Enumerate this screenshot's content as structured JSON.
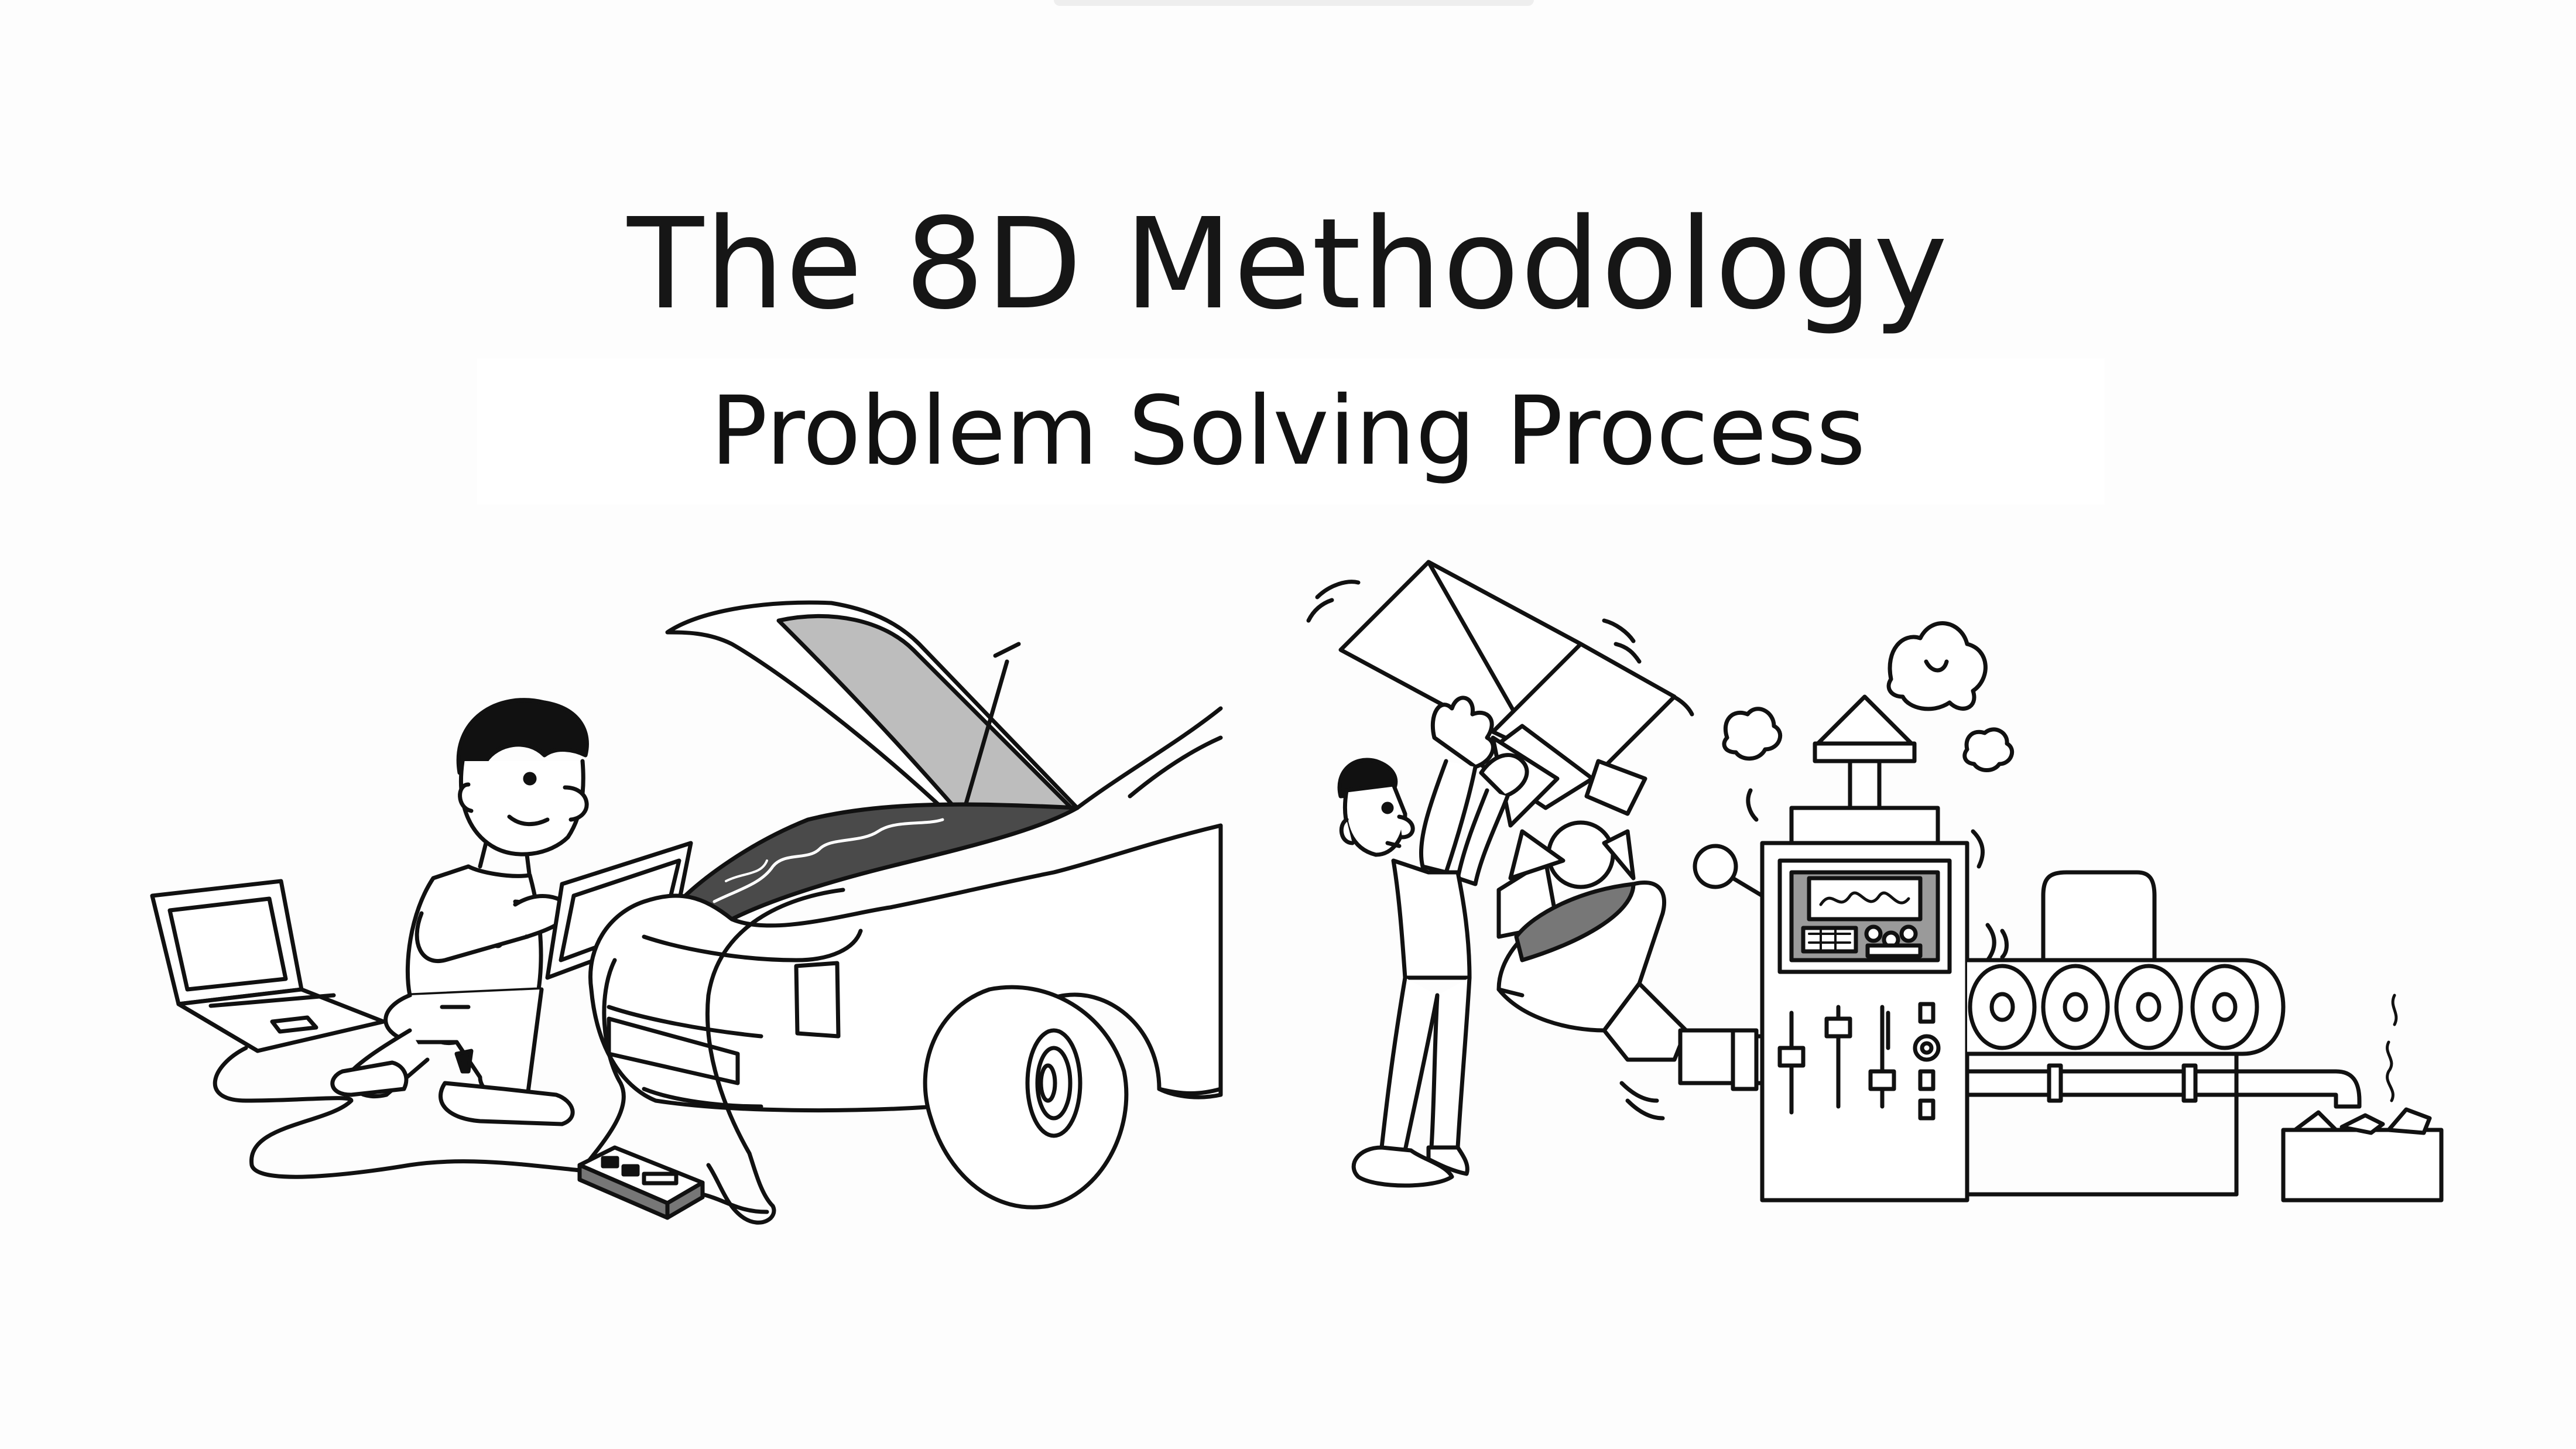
{
  "slide": {
    "title": "The 8D Methodology",
    "subtitle": "Problem Solving Process"
  },
  "illustrations": {
    "left_scene": "mechanic-diagnosing-car",
    "right_scene": "worker-feeding-machine"
  },
  "colors": {
    "background": "#fdfdfd",
    "ink": "#111111",
    "hood_fill": "#bdbdbd",
    "engine_fill": "#4a4a4a",
    "screen_fill": "#9a9a9a"
  }
}
